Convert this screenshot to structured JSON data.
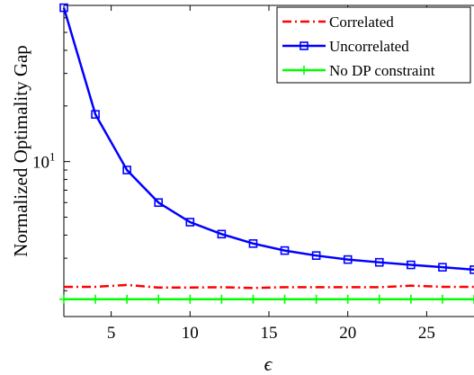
{
  "chart_data": {
    "type": "line",
    "title": "",
    "xlabel": "ϵ",
    "ylabel": "Normalized Optimality Gap",
    "xlim": [
      2,
      28
    ],
    "ylim": [
      1.45,
      70
    ],
    "yscale": "log",
    "grid": false,
    "legend_position": "top-right",
    "x_ticks": [
      5,
      10,
      15,
      20,
      25
    ],
    "y_ticks": [
      {
        "value": 10,
        "base": "10",
        "exponent": "1"
      }
    ],
    "series": [
      {
        "name": "Correlated",
        "color": "#ff0000",
        "line_style": "dash-dot",
        "marker": "none",
        "x": [
          2,
          4,
          6,
          8,
          10,
          12,
          14,
          16,
          18,
          20,
          22,
          24,
          26,
          28
        ],
        "y": [
          2.1,
          2.1,
          2.15,
          2.08,
          2.08,
          2.09,
          2.07,
          2.09,
          2.09,
          2.09,
          2.09,
          2.13,
          2.1,
          2.1
        ]
      },
      {
        "name": "Uncorrelated",
        "color": "#0000ff",
        "line_style": "solid",
        "marker": "square",
        "x": [
          2,
          4,
          6,
          8,
          10,
          12,
          14,
          16,
          18,
          20,
          22,
          24,
          26,
          28
        ],
        "y": [
          68,
          18.0,
          9.0,
          6.0,
          4.7,
          4.05,
          3.6,
          3.3,
          3.1,
          2.95,
          2.85,
          2.76,
          2.68,
          2.6
        ]
      },
      {
        "name": "No DP constraint",
        "color": "#00ff00",
        "line_style": "solid",
        "marker": "plus",
        "x": [
          2,
          4,
          6,
          8,
          10,
          12,
          14,
          16,
          18,
          20,
          22,
          24,
          26,
          28
        ],
        "y": [
          1.8,
          1.8,
          1.8,
          1.8,
          1.8,
          1.8,
          1.8,
          1.8,
          1.8,
          1.8,
          1.8,
          1.8,
          1.8,
          1.8
        ]
      }
    ]
  }
}
